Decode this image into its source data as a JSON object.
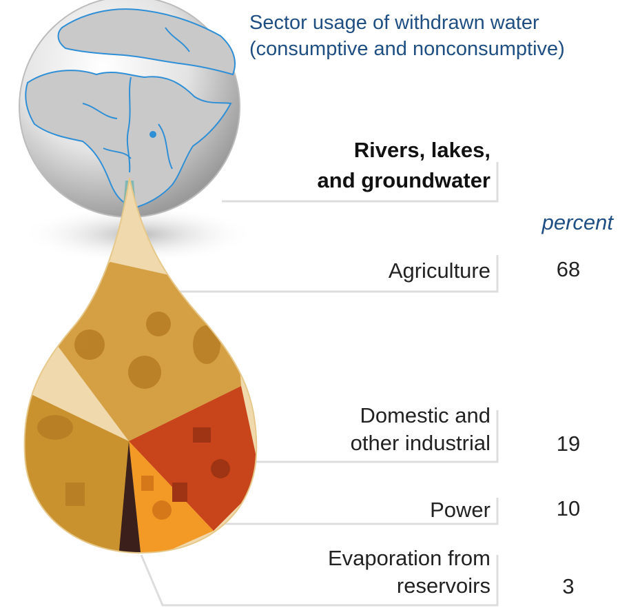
{
  "title_lines": [
    "Sector usage of withdrawn water",
    "(consumptive and nonconsumptive)"
  ],
  "source_lines": [
    "Rivers, lakes,",
    "and groundwater"
  ],
  "unit": "percent",
  "colors": {
    "title": "#1f4f82",
    "agriculture": "#d39b3a",
    "domestic_industrial": "#c8441b",
    "power": "#f39a26",
    "evaporation": "#3a1f1a",
    "leader_line": "#dddddd"
  },
  "sectors": [
    {
      "key": "agriculture",
      "label_lines": [
        "Agriculture"
      ],
      "value": "68"
    },
    {
      "key": "domestic",
      "label_lines": [
        "Domestic and",
        "other industrial"
      ],
      "value": "19"
    },
    {
      "key": "power",
      "label_lines": [
        "Power"
      ],
      "value": "10"
    },
    {
      "key": "evaporation",
      "label_lines": [
        "Evaporation from",
        "reservoirs"
      ],
      "value": "3"
    }
  ]
}
